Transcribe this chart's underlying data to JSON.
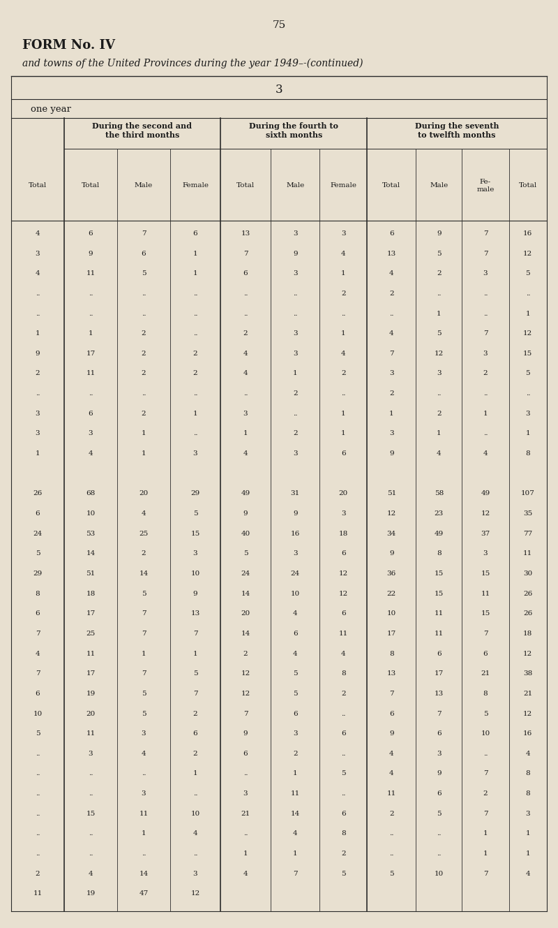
{
  "page_number": "75",
  "form_title": "FORM No. IV",
  "subtitle": "and towns of the United Provinces during the year 1949–-(continued)",
  "col3_header": "3",
  "section_header": "one year",
  "group_headers": [
    "During the second and\nthe third months",
    "During the fourth to\nsixth months",
    "During the seventh\nto twelfth months"
  ],
  "col_headers": [
    "Total",
    "Total",
    "Male",
    "Female",
    "Total",
    "Male",
    "Female",
    "Total",
    "Male",
    "Fe-\nmale",
    "Total"
  ],
  "rows": [
    [
      "4",
      "6",
      "7",
      "6",
      "13",
      "3",
      "3",
      "6",
      "9",
      "7",
      "16"
    ],
    [
      "3",
      "9",
      "6",
      "1",
      "7",
      "9",
      "4",
      "13",
      "5",
      "7",
      "12"
    ],
    [
      "4",
      "11",
      "5",
      "1",
      "6",
      "3",
      "1",
      "4",
      "2",
      "3",
      "5"
    ],
    [
      "..",
      "..",
      "..",
      "..",
      "..",
      "..",
      "2",
      "2",
      "..",
      "..",
      ".."
    ],
    [
      "..",
      "..",
      "..",
      "..",
      "..",
      "..",
      "..",
      "..",
      "1",
      "..",
      "1"
    ],
    [
      "1",
      "1",
      "2",
      "..",
      "2",
      "3",
      "1",
      "4",
      "5",
      "7",
      "12"
    ],
    [
      "9",
      "17",
      "2",
      "2",
      "4",
      "3",
      "4",
      "7",
      "12",
      "3",
      "15"
    ],
    [
      "2",
      "11",
      "2",
      "2",
      "4",
      "1",
      "2",
      "3",
      "3",
      "2",
      "5"
    ],
    [
      "..",
      "..",
      "..",
      "..",
      "..",
      "2",
      "..",
      "2",
      "..",
      "..",
      ".."
    ],
    [
      "3",
      "6",
      "2",
      "1",
      "3",
      "..",
      "1",
      "1",
      "2",
      "1",
      "3"
    ],
    [
      "3",
      "3",
      "1",
      "..",
      "1",
      "2",
      "1",
      "3",
      "1",
      "..",
      "1"
    ],
    [
      "1",
      "4",
      "1",
      "3",
      "4",
      "3",
      "6",
      "9",
      "4",
      "4",
      "8"
    ],
    [
      "",
      "",
      "",
      "",
      "",
      "",
      "",
      "",
      "",
      "",
      ""
    ],
    [
      "26",
      "68",
      "20",
      "29",
      "49",
      "31",
      "20",
      "51",
      "58",
      "49",
      "107"
    ],
    [
      "6",
      "10",
      "4",
      "5",
      "9",
      "9",
      "3",
      "12",
      "23",
      "12",
      "35"
    ],
    [
      "24",
      "53",
      "25",
      "15",
      "40",
      "16",
      "18",
      "34",
      "49",
      "37",
      "77"
    ],
    [
      "5",
      "14",
      "2",
      "3",
      "5",
      "3",
      "6",
      "9",
      "8",
      "3",
      "11"
    ],
    [
      "29",
      "51",
      "14",
      "10",
      "24",
      "24",
      "12",
      "36",
      "15",
      "15",
      "30"
    ],
    [
      "8",
      "18",
      "5",
      "9",
      "14",
      "10",
      "12",
      "22",
      "15",
      "11",
      "26"
    ],
    [
      "6",
      "17",
      "7",
      "13",
      "20",
      "4",
      "6",
      "10",
      "11",
      "15",
      "26"
    ],
    [
      "7",
      "25",
      "7",
      "7",
      "14",
      "6",
      "11",
      "17",
      "11",
      "7",
      "18"
    ],
    [
      "4",
      "11",
      "1",
      "1",
      "2",
      "4",
      "4",
      "8",
      "6",
      "6",
      "12"
    ],
    [
      "7",
      "17",
      "7",
      "5",
      "12",
      "5",
      "8",
      "13",
      "17",
      "21",
      "38"
    ],
    [
      "6",
      "19",
      "5",
      "7",
      "12",
      "5",
      "2",
      "7",
      "13",
      "8",
      "21"
    ],
    [
      "10",
      "20",
      "5",
      "2",
      "7",
      "6",
      "..",
      "6",
      "7",
      "5",
      "12"
    ],
    [
      "5",
      "11",
      "3",
      "6",
      "9",
      "3",
      "6",
      "9",
      "6",
      "10",
      "16"
    ],
    [
      "..",
      "3",
      "4",
      "2",
      "6",
      "2",
      "..",
      "4",
      "3",
      "..",
      "4"
    ],
    [
      "..",
      "..",
      "..",
      "1",
      "..",
      "1",
      "5",
      "4",
      "9",
      "7",
      "8"
    ],
    [
      "..",
      "..",
      "3",
      "..",
      "3",
      "11",
      "..",
      "11",
      "6",
      "2",
      "8"
    ],
    [
      "..",
      "15",
      "11",
      "10",
      "21",
      "14",
      "6",
      "2",
      "5",
      "7",
      "3"
    ],
    [
      "..",
      "..",
      "1",
      "4",
      "..",
      "4",
      "8",
      "..",
      "..",
      "1",
      "1"
    ],
    [
      "..",
      "..",
      "..",
      "..",
      "1",
      "1",
      "2",
      "..",
      "..",
      "1",
      "1"
    ],
    [
      "2",
      "4",
      "14",
      "3",
      "4",
      "7",
      "5",
      "5",
      "10",
      "7",
      "4"
    ],
    [
      "11",
      "19",
      "47",
      "12",
      "",
      "",
      "",
      "",
      "",
      "",
      ""
    ]
  ],
  "bg_color": "#e8e0d0",
  "text_color": "#1a1a1a",
  "line_color": "#2a2a2a"
}
